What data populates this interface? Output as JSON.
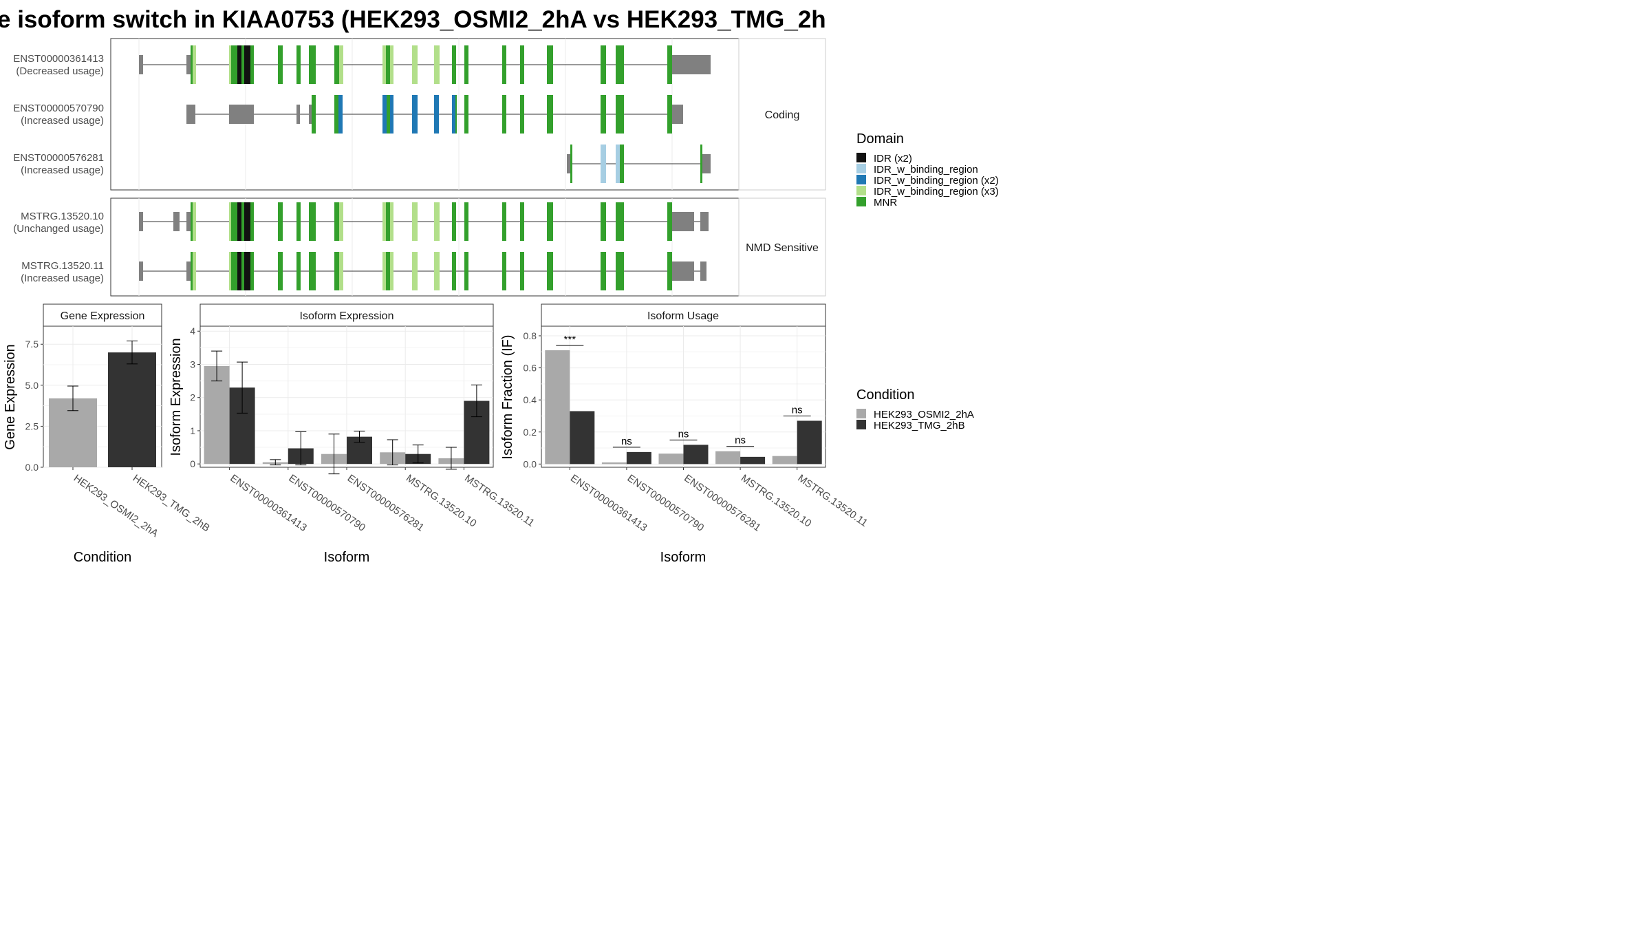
{
  "title": "e isoform switch in KIAA0753 (HEK293_OSMI2_2hA vs HEK293_TMG_2h",
  "colors": {
    "IDR (x2)": "#111111",
    "IDR_w_binding_region": "#a6cee3",
    "IDR_w_binding_region (x2)": "#1f78b4",
    "IDR_w_binding_region (x3)": "#b2df8a",
    "MNR": "#33a02c",
    "noncoding": "#808080",
    "HEK293_OSMI2_2hA": "#a9a9a9",
    "HEK293_TMG_2hB": "#333333"
  },
  "structure": {
    "panels": [
      {
        "label": "Coding",
        "isoforms": [
          {
            "id": "ENST00000361413",
            "usage": "(Decreased usage)"
          },
          {
            "id": "ENST00000570790",
            "usage": "(Increased usage)"
          },
          {
            "id": "ENST00000576281",
            "usage": "(Increased usage)"
          }
        ]
      },
      {
        "label": "NMD Sensitive",
        "isoforms": [
          {
            "id": "MSTRG.13520.10",
            "usage": "(Unchanged usage)"
          },
          {
            "id": "MSTRG.13520.11",
            "usage": "(Increased usage)"
          }
        ]
      }
    ],
    "domain_legend": {
      "title": "Domain",
      "items": [
        "IDR (x2)",
        "IDR_w_binding_region",
        "IDR_w_binding_region (x2)",
        "IDR_w_binding_region (x3)",
        "MNR"
      ]
    }
  },
  "chart_data": [
    {
      "type": "bar",
      "title": "Gene Expression",
      "xlabel": "Condition",
      "ylabel": "Gene Expression",
      "categories": [
        "HEK293_OSMI2_2hA",
        "HEK293_TMG_2hB"
      ],
      "series": [
        {
          "name": "HEK293_OSMI2_2hA",
          "values": [
            4.2,
            null
          ],
          "error": [
            0.75,
            null
          ]
        },
        {
          "name": "HEK293_TMG_2hB",
          "values": [
            null,
            7.0
          ],
          "error": [
            null,
            0.7
          ]
        }
      ],
      "ylim": [
        0,
        8.6
      ],
      "yticks": [
        "0.0",
        "2.5",
        "5.0",
        "7.5"
      ]
    },
    {
      "type": "bar",
      "title": "Isoform Expression",
      "xlabel": "Isoform",
      "ylabel": "Isoform Expression",
      "categories": [
        "ENST00000361413",
        "ENST00000570790",
        "ENST00000576281",
        "MSTRG.13520.10",
        "MSTRG.13520.11"
      ],
      "series": [
        {
          "name": "HEK293_OSMI2_2hA",
          "values": [
            2.95,
            0.05,
            0.3,
            0.35,
            0.17
          ],
          "error": [
            0.45,
            0.08,
            0.6,
            0.38,
            0.33
          ]
        },
        {
          "name": "HEK293_TMG_2hB",
          "values": [
            2.3,
            0.47,
            0.82,
            0.3,
            1.9
          ],
          "error": [
            0.77,
            0.5,
            0.17,
            0.27,
            0.48
          ]
        }
      ],
      "ylim": [
        -0.1,
        4.15
      ],
      "yticks": [
        "0",
        "1",
        "2",
        "3",
        "4"
      ]
    },
    {
      "type": "bar",
      "title": "Isoform Usage",
      "xlabel": "Isoform",
      "ylabel": "Isoform Fraction (IF)",
      "categories": [
        "ENST00000361413",
        "ENST00000570790",
        "ENST00000576281",
        "MSTRG.13520.10",
        "MSTRG.13520.11"
      ],
      "series": [
        {
          "name": "HEK293_OSMI2_2hA",
          "values": [
            0.71,
            0.01,
            0.065,
            0.08,
            0.05
          ]
        },
        {
          "name": "HEK293_TMG_2hB",
          "values": [
            0.33,
            0.075,
            0.12,
            0.045,
            0.27
          ]
        }
      ],
      "significance": [
        "***",
        "ns",
        "ns",
        "ns",
        "ns"
      ],
      "ylim": [
        -0.02,
        0.86
      ],
      "yticks": [
        "0.0",
        "0.2",
        "0.4",
        "0.6",
        "0.8"
      ]
    }
  ],
  "condition_legend": {
    "title": "Condition",
    "items": [
      "HEK293_OSMI2_2hA",
      "HEK293_TMG_2hB"
    ]
  }
}
